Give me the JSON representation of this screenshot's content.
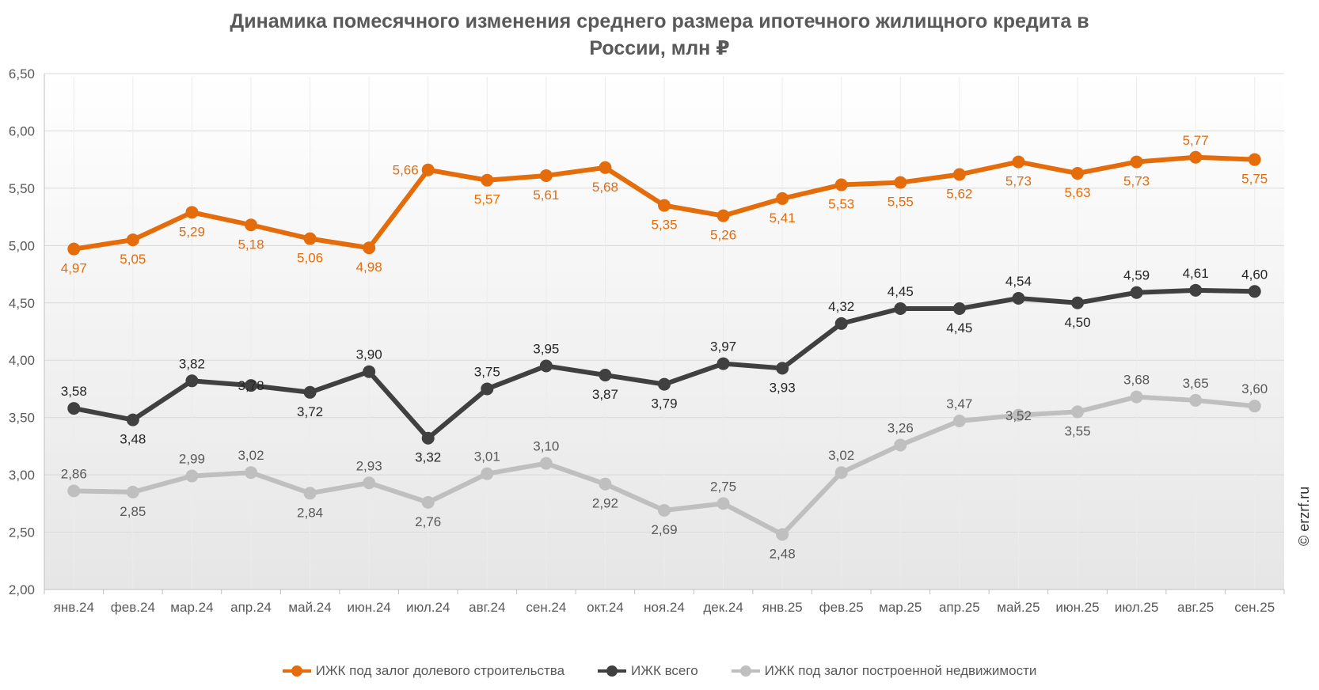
{
  "title": {
    "line1": "Динамика помесячного изменения среднего размера ипотечного жилищного кредита в",
    "line2": "России, млн ₽"
  },
  "watermark": "© erzrf.ru",
  "chart_data": {
    "type": "line",
    "title": "Динамика помесячного изменения среднего размера ипотечного жилищного кредита в России, млн ₽",
    "categories": [
      "янв.24",
      "фев.24",
      "мар.24",
      "апр.24",
      "май.24",
      "июн.24",
      "июл.24",
      "авг.24",
      "сен.24",
      "окт.24",
      "ноя.24",
      "дек.24",
      "янв.25",
      "фев.25",
      "мар.25",
      "апр.25",
      "май.25",
      "июн.25",
      "июл.25",
      "авг.25",
      "сен.25"
    ],
    "ylim": [
      2.0,
      6.5
    ],
    "yticks": [
      "2,00",
      "2,50",
      "3,00",
      "3,50",
      "4,00",
      "4,50",
      "5,00",
      "5,50",
      "6,00",
      "6,50"
    ],
    "grid": "horizontal",
    "legend_position": "bottom",
    "series": [
      {
        "name": "ИЖК под залог долевого строительства",
        "color": "#e46c0a",
        "values": [
          4.97,
          5.05,
          5.29,
          5.18,
          5.06,
          4.98,
          5.66,
          5.57,
          5.61,
          5.68,
          5.35,
          5.26,
          5.41,
          5.53,
          5.55,
          5.62,
          5.73,
          5.63,
          5.73,
          5.77,
          5.75
        ],
        "labels": [
          "4,97",
          "5,05",
          "5,29",
          "5,18",
          "5,06",
          "4,98",
          "5,66",
          "5,57",
          "5,61",
          "5,68",
          "5,35",
          "5,26",
          "5,41",
          "5,53",
          "5,55",
          "5,62",
          "5,73",
          "5,63",
          "5,73",
          "5,77",
          "5,75"
        ],
        "label_pos": [
          "below",
          "below",
          "below",
          "below",
          "below",
          "below",
          "left",
          "below",
          "below",
          "below",
          "below",
          "below",
          "below",
          "below",
          "below",
          "below",
          "below",
          "below",
          "below",
          "above",
          "below"
        ]
      },
      {
        "name": "ИЖК всего",
        "color": "#404040",
        "values": [
          3.58,
          3.48,
          3.82,
          3.78,
          3.72,
          3.9,
          3.32,
          3.75,
          3.95,
          3.87,
          3.79,
          3.97,
          3.93,
          4.32,
          4.45,
          4.45,
          4.54,
          4.5,
          4.59,
          4.61,
          4.6
        ],
        "labels": [
          "3,58",
          "3,48",
          "3,82",
          "3,78",
          "3,72",
          "3,90",
          "3,32",
          "3,75",
          "3,95",
          "3,87",
          "3,79",
          "3,97",
          "3,93",
          "4,32",
          "4,45",
          "4,45",
          "4,54",
          "4,50",
          "4,59",
          "4,61",
          "4,60"
        ],
        "label_pos": [
          "above",
          "below",
          "above",
          "center",
          "below",
          "above",
          "below",
          "above",
          "above",
          "below",
          "below",
          "above",
          "below",
          "above",
          "above",
          "below",
          "above",
          "below",
          "above",
          "above",
          "above"
        ]
      },
      {
        "name": "ИЖК под залог построенной недвижимости",
        "color": "#bfbfbf",
        "values": [
          2.86,
          2.85,
          2.99,
          3.02,
          2.84,
          2.93,
          2.76,
          3.01,
          3.1,
          2.92,
          2.69,
          2.75,
          2.48,
          3.02,
          3.26,
          3.47,
          3.52,
          3.55,
          3.68,
          3.65,
          3.6
        ],
        "labels": [
          "2,86",
          "2,85",
          "2,99",
          "3,02",
          "2,84",
          "2,93",
          "2,76",
          "3,01",
          "3,10",
          "2,92",
          "2,69",
          "2,75",
          "2,48",
          "3,02",
          "3,26",
          "3,47",
          "3,52",
          "3,55",
          "3,68",
          "3,65",
          "3,60"
        ],
        "label_pos": [
          "above",
          "below",
          "above",
          "above",
          "below",
          "above",
          "below",
          "above",
          "above",
          "below",
          "below",
          "above",
          "below",
          "above",
          "above",
          "above",
          "center",
          "below",
          "above",
          "above",
          "above"
        ]
      }
    ]
  }
}
